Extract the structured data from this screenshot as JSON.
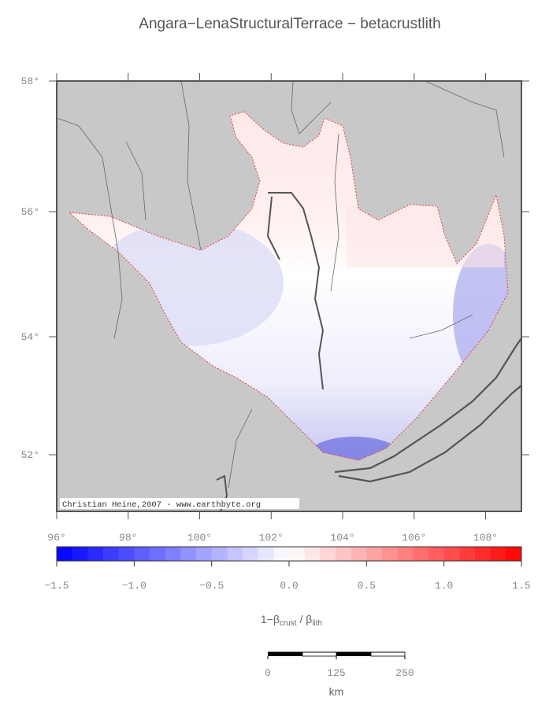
{
  "header": {
    "title": "Angara−LenaStructuralTerrace − betacrustlith"
  },
  "map": {
    "lat_labels": [
      "58°",
      "56°",
      "54°",
      "52°"
    ],
    "lon_labels": [
      "96°",
      "98°",
      "100°",
      "102°",
      "104°",
      "106°",
      "108°"
    ],
    "credit": "Christian Heine,2007 - www.earthbyte.org"
  },
  "colorbar": {
    "tick_labels": [
      "−1.5",
      "−1.0",
      "−0.5",
      "0.0",
      "0.5",
      "1.0",
      "1.5"
    ],
    "label": {
      "main": "1−β",
      "sub1": "crust",
      "mid": " / β",
      "sub2": "lith"
    }
  },
  "scalebar": {
    "labels": [
      "0",
      "125",
      "250"
    ],
    "unit": "km"
  }
}
